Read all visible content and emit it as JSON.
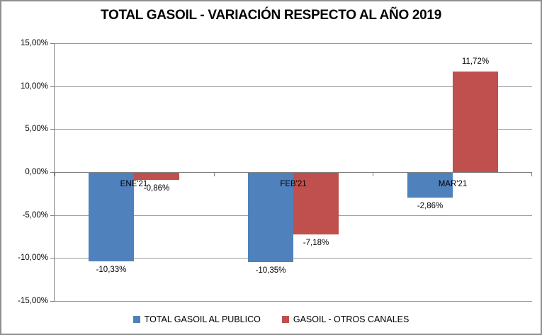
{
  "chart_data": {
    "type": "bar",
    "title": "TOTAL GASOIL - VARIACIÓN RESPECTO AL AÑO 2019",
    "categories": [
      "ENE'21",
      "FEB'21",
      "MAR'21"
    ],
    "series": [
      {
        "name": "TOTAL GASOIL AL PUBLICO",
        "color": "#4F81BD",
        "values": [
          -10.33,
          -10.35,
          -2.86
        ],
        "labels": [
          "-10,33%",
          "-10,35%",
          "-2,86%"
        ]
      },
      {
        "name": "GASOIL - OTROS CANALES",
        "color": "#C0504D",
        "values": [
          -0.86,
          -7.18,
          11.72
        ],
        "labels": [
          "-0,86%",
          "-7,18%",
          "11,72%"
        ]
      }
    ],
    "ylim": [
      -15,
      15
    ],
    "yticks": [
      {
        "value": 15,
        "label": "15,00%"
      },
      {
        "value": 10,
        "label": "10,00%"
      },
      {
        "value": 5,
        "label": "5,00%"
      },
      {
        "value": 0,
        "label": "0,00%"
      },
      {
        "value": -5,
        "label": "-5,00%"
      },
      {
        "value": -10,
        "label": "-10,00%"
      },
      {
        "value": -15,
        "label": "-15,00%"
      }
    ],
    "grid": true,
    "legend_position": "bottom",
    "colors": {
      "gridline": "#989898",
      "axis": "#7f7f7f",
      "text": "#000000",
      "background": "#ffffff",
      "border": "#8f8f8f"
    }
  }
}
